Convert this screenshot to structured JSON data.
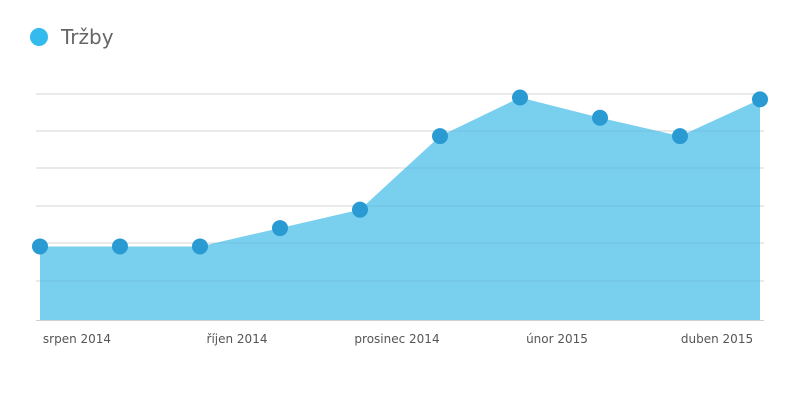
{
  "chart_data": {
    "type": "area",
    "x_labels": [
      "srpen 2014",
      "říjen 2014",
      "prosinec 2014",
      "únor 2015",
      "duben 2015"
    ],
    "x_label_indices": [
      0,
      2,
      4,
      6,
      8
    ],
    "series": [
      {
        "name": "Tržby",
        "values": [
          2,
          2,
          2,
          2.5,
          3,
          5,
          6.05,
          5.5,
          5,
          6
        ]
      }
    ],
    "ylim": [
      0,
      6.2
    ],
    "grid": true,
    "legend_position": "top-left"
  },
  "colors": {
    "area_fill": "#79cfee",
    "marker": "#2a9ad2",
    "legend_swatch": "#33bbee",
    "grid": "#e2e2e2",
    "axis": "#cfcfcf"
  }
}
